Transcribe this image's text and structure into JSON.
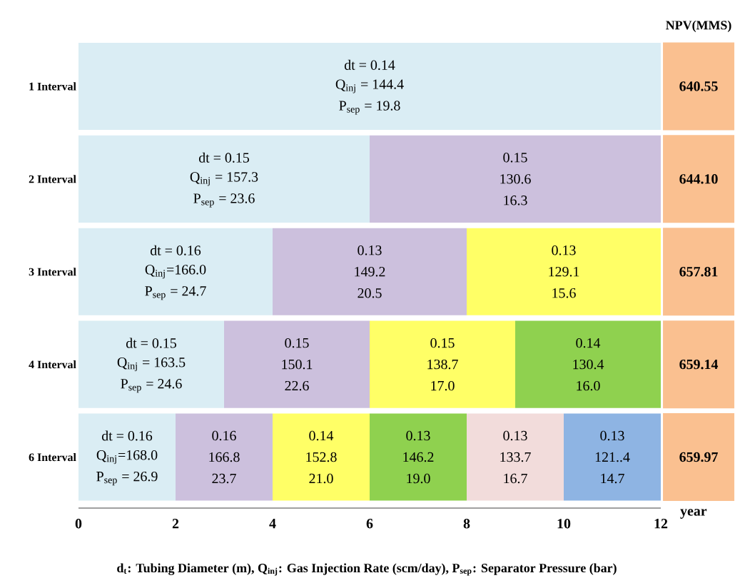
{
  "chart_data": {
    "type": "bar",
    "orientation": "horizontal",
    "stacked": true,
    "categories": [
      "1 Interval",
      "2 Interval",
      "3 Interval",
      "4 Interval",
      "6 Interval"
    ],
    "series": [
      {
        "color": "#daedf4",
        "values": [
          12,
          6,
          4,
          3,
          2
        ]
      },
      {
        "color": "#ccc0dd",
        "values": [
          null,
          6,
          4,
          3,
          2
        ]
      },
      {
        "color": "#ffff66",
        "values": [
          null,
          null,
          4,
          3,
          2
        ]
      },
      {
        "color": "#8fd14f",
        "values": [
          null,
          null,
          null,
          3,
          2
        ]
      },
      {
        "color": "#f2dcdb",
        "values": [
          null,
          null,
          null,
          null,
          2
        ]
      },
      {
        "color": "#8eb4e3",
        "values": [
          null,
          null,
          null,
          null,
          2
        ]
      }
    ],
    "xlim": [
      0,
      12
    ],
    "xticks": [
      0,
      2,
      4,
      6,
      8,
      10,
      12
    ],
    "xlabel": "year",
    "annotations": [
      "NPV(MMS)",
      "dt = 0.14",
      "Q$_{inj}$ = 144.4",
      "P$_{sep}$ = 19.8",
      "dt = 0.15",
      "Q$_{inj}$ = 157.3",
      "P$_{sep}$ = 23.6",
      "0.15",
      "130.6",
      "16.3",
      "dt = 0.16",
      "Q$_{inj}$=166.0",
      "P$_{sep}$ = 24.7",
      "0.13",
      "149.2",
      "20.5",
      "0.13",
      "129.1",
      "15.6",
      "dt = 0.15",
      "Q$_{inj}$ = 163.5",
      "P$_{sep}$ = 24.6",
      "0.15",
      "150.1",
      "22.6",
      "0.15",
      "138.7",
      "17.0",
      "0.14",
      "130.4",
      "16.0",
      "dt = 0.16",
      "Q$_{inj}$=168.0",
      "P$_{sep}$ = 26.9",
      "0.16",
      "166.8",
      "23.7",
      "0.14",
      "152.8",
      "21.0",
      "0.13",
      "146.2",
      "19.0",
      "0.13",
      "133.7",
      "16.7",
      "0.13",
      "121..4",
      "14.7",
      "640.55",
      "644.10",
      "657.81",
      "659.14",
      "659.97",
      "d$_{t}$: Tubing Diameter (m), Q$_{inj}$: Gas Injection Rate (scm/day), P$_{sep}$: Separator Pressure (bar)"
    ]
  }
}
